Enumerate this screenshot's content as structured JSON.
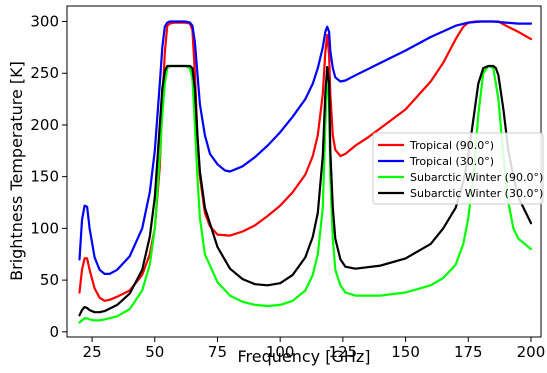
{
  "chart_data": {
    "type": "line",
    "xlabel": "Frequency [GHz]",
    "ylabel": "Brightness Temperature [K]",
    "xlim": [
      15,
      204
    ],
    "ylim": [
      -5,
      315
    ],
    "xticks": [
      25,
      50,
      75,
      100,
      125,
      150,
      175,
      200
    ],
    "yticks": [
      0,
      50,
      100,
      150,
      200,
      250,
      300
    ],
    "legend_position": "center-right",
    "grid": false,
    "series": [
      {
        "name": "Tropical (90.0°)",
        "color": "#ff0000",
        "x": [
          20,
          21,
          22,
          23,
          24,
          26,
          28,
          30,
          32,
          35,
          40,
          45,
          48,
          50,
          52,
          53,
          54,
          55,
          56,
          58,
          60,
          62,
          64,
          65,
          66,
          67,
          68,
          70,
          72,
          75,
          80,
          85,
          90,
          95,
          100,
          105,
          110,
          113,
          115,
          117,
          118,
          118.75,
          119.5,
          120,
          121,
          122,
          124,
          126,
          130,
          135,
          140,
          150,
          160,
          165,
          170,
          173,
          175,
          178,
          180,
          183,
          185,
          187,
          190,
          195,
          200
        ],
        "y": [
          38,
          60,
          71,
          71,
          60,
          42,
          33,
          30,
          31,
          34,
          40,
          55,
          75,
          100,
          160,
          220,
          270,
          296,
          298,
          299,
          299,
          299,
          298,
          292,
          250,
          190,
          150,
          115,
          102,
          94,
          93,
          97,
          103,
          112,
          122,
          135,
          152,
          170,
          190,
          230,
          270,
          287,
          268,
          230,
          190,
          176,
          170,
          172,
          180,
          188,
          197,
          215,
          242,
          260,
          283,
          295,
          299,
          300,
          300,
          300,
          300,
          300,
          296,
          290,
          283
        ]
      },
      {
        "name": "Tropical (30.0°)",
        "color": "#0000ff",
        "x": [
          20,
          21,
          22,
          23,
          24,
          26,
          28,
          30,
          32,
          35,
          40,
          45,
          48,
          50,
          52,
          53,
          54,
          55,
          56,
          58,
          60,
          62,
          64,
          65,
          66,
          67,
          68,
          70,
          72,
          75,
          78,
          80,
          85,
          90,
          95,
          100,
          105,
          110,
          113,
          115,
          117,
          118,
          118.75,
          119.5,
          120,
          121,
          122,
          124,
          126,
          130,
          140,
          150,
          160,
          170,
          175,
          180,
          185,
          190,
          195,
          200
        ],
        "y": [
          70,
          108,
          122,
          121,
          100,
          72,
          60,
          56,
          56,
          60,
          73,
          100,
          135,
          175,
          240,
          275,
          295,
          299,
          300,
          300,
          300,
          300,
          299,
          296,
          280,
          250,
          220,
          190,
          172,
          162,
          156,
          155,
          160,
          169,
          180,
          193,
          208,
          225,
          240,
          255,
          275,
          290,
          295,
          290,
          272,
          255,
          246,
          242,
          243,
          248,
          260,
          272,
          285,
          296,
          299,
          300,
          300,
          299,
          298,
          298
        ]
      },
      {
        "name": "Subarctic Winter (90.0°)",
        "color": "#00ff00",
        "x": [
          20,
          21,
          22,
          23,
          24,
          26,
          28,
          30,
          35,
          40,
          45,
          48,
          50,
          52,
          53,
          54,
          55,
          56,
          58,
          60,
          62,
          64,
          65,
          66,
          67,
          68,
          70,
          75,
          80,
          85,
          90,
          95,
          100,
          105,
          110,
          113,
          115,
          117,
          118,
          118.75,
          119.5,
          120,
          121,
          122,
          124,
          126,
          130,
          140,
          150,
          160,
          165,
          170,
          173,
          175,
          177,
          179,
          181,
          183,
          185,
          187,
          189,
          191,
          193,
          195,
          200
        ],
        "y": [
          9,
          11,
          13,
          13,
          12,
          11,
          11,
          12,
          15,
          22,
          40,
          65,
          100,
          170,
          210,
          240,
          255,
          257,
          257,
          257,
          257,
          255,
          245,
          200,
          150,
          110,
          75,
          48,
          35,
          29,
          26,
          25,
          26,
          30,
          40,
          55,
          75,
          120,
          200,
          255,
          220,
          150,
          90,
          60,
          45,
          38,
          35,
          35,
          38,
          45,
          52,
          65,
          85,
          110,
          150,
          210,
          250,
          257,
          255,
          225,
          170,
          125,
          100,
          90,
          80
        ]
      },
      {
        "name": "Subarctic Winter (30.0°)",
        "color": "#000000",
        "x": [
          20,
          21,
          22,
          23,
          24,
          26,
          28,
          30,
          35,
          40,
          45,
          48,
          50,
          52,
          53,
          54,
          55,
          56,
          58,
          60,
          62,
          64,
          65,
          66,
          67,
          68,
          70,
          75,
          80,
          85,
          90,
          95,
          100,
          105,
          110,
          113,
          115,
          117,
          118,
          118.75,
          119.5,
          120,
          121,
          122,
          124,
          126,
          130,
          140,
          150,
          160,
          165,
          170,
          173,
          175,
          177,
          179,
          181,
          183,
          185,
          186,
          187,
          189,
          191,
          193,
          195,
          200
        ],
        "y": [
          16,
          21,
          24,
          23,
          21,
          19,
          19,
          20,
          26,
          37,
          60,
          92,
          130,
          200,
          235,
          252,
          257,
          257,
          257,
          257,
          257,
          257,
          255,
          235,
          190,
          155,
          120,
          82,
          61,
          51,
          46,
          45,
          47,
          55,
          72,
          92,
          115,
          170,
          230,
          256,
          240,
          175,
          120,
          90,
          70,
          63,
          61,
          64,
          71,
          85,
          100,
          120,
          145,
          170,
          205,
          240,
          255,
          257,
          257,
          255,
          248,
          215,
          175,
          150,
          130,
          105
        ]
      }
    ]
  }
}
